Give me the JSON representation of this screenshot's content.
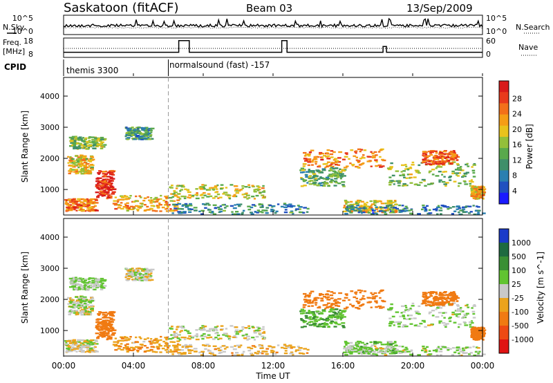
{
  "header": {
    "station": "Saskatoon (fitACF)",
    "beam": "Beam 03",
    "date": "13/Sep/2009"
  },
  "side_labels": {
    "nsky": "N.Sky",
    "nsearch": "N.Search",
    "freq_top": "Freq.",
    "freq_unit": "[MHz]",
    "nave": "Nave",
    "cpid": "CPID"
  },
  "noise_axis": {
    "left": [
      "10^5",
      "10^0"
    ],
    "right": [
      "10^5",
      "10^0"
    ]
  },
  "freq_axis": {
    "left": [
      "18",
      "8"
    ],
    "right": [
      "60",
      "0"
    ]
  },
  "cpid_labels": [
    "themis 3300",
    "normalsound (fast) -157"
  ],
  "time_axis": {
    "ticks": [
      "00:00",
      "04:00",
      "08:00",
      "12:00",
      "16:00",
      "20:00",
      "00:00"
    ],
    "tick_hours": [
      0,
      4,
      8,
      12,
      16,
      20,
      24
    ],
    "label": "Time UT"
  },
  "range_axis": {
    "label": "Slant Range [km]",
    "ticks": [
      "1000",
      "2000",
      "3000",
      "4000"
    ],
    "tick_values": [
      1000,
      2000,
      3000,
      4000
    ],
    "ylim": [
      180,
      4600
    ]
  },
  "power_scale": {
    "label": "Power [dB]",
    "ticks": [
      "4",
      "8",
      "12",
      "16",
      "20",
      "24",
      "28"
    ],
    "colors": [
      "#1a1aff",
      "#2050c0",
      "#2a7fb0",
      "#3f8f6a",
      "#59a94c",
      "#93bf3a",
      "#e8c21c",
      "#f59d16",
      "#f3701a",
      "#e83a1c",
      "#d81a1a"
    ]
  },
  "velocity_scale": {
    "label": "Velocity [m s^-1]",
    "ticks": [
      "1000",
      "500",
      "100",
      "25",
      "-25",
      "-100",
      "-500",
      "-1000"
    ],
    "colors": [
      "#1a3ac9",
      "#1e6a40",
      "#3a8f34",
      "#61c431",
      "#c9c9c9",
      "#eba31c",
      "#f07a12",
      "#ee4a14",
      "#e01414"
    ]
  },
  "chart_data": {
    "type": "heatmap",
    "xlabel": "Time UT",
    "ylabel": "Slant Range [km]",
    "xlim_hours": [
      0,
      24
    ],
    "ylim_km": [
      180,
      4600
    ],
    "cpid_change_hour": 6.0,
    "frequency_mhz": {
      "baseline": 11,
      "spikes": [
        {
          "start_h": 6.6,
          "end_h": 7.2,
          "value": 17
        },
        {
          "start_h": 12.5,
          "end_h": 12.8,
          "value": 17
        },
        {
          "start_h": 18.3,
          "end_h": 18.5,
          "value": 14
        }
      ]
    },
    "scatter_regions": [
      {
        "t0": 0.3,
        "t1": 2.3,
        "r0": 2300,
        "r1": 2700,
        "power": 14,
        "velocity": 40
      },
      {
        "t0": 0.2,
        "t1": 1.6,
        "r0": 1500,
        "r1": 2100,
        "power": 18,
        "velocity": 10
      },
      {
        "t0": 1.8,
        "t1": 2.8,
        "r0": 700,
        "r1": 1600,
        "power": 26,
        "velocity": -200
      },
      {
        "t0": 0.0,
        "t1": 1.8,
        "r0": 300,
        "r1": 700,
        "power": 22,
        "velocity": 0
      },
      {
        "t0": 2.8,
        "t1": 6.5,
        "r0": 300,
        "r1": 800,
        "power": 20,
        "velocity": -80
      },
      {
        "t0": 3.5,
        "t1": 5.0,
        "r0": 2600,
        "r1": 3000,
        "power": 10,
        "velocity": 0
      },
      {
        "t0": 6.0,
        "t1": 11.5,
        "r0": 700,
        "r1": 1150,
        "power": 17,
        "velocity": 0
      },
      {
        "t0": 6.0,
        "t1": 14.0,
        "r0": 200,
        "r1": 550,
        "power": 9,
        "velocity": -50
      },
      {
        "t0": 13.6,
        "t1": 18.3,
        "r0": 1700,
        "r1": 2300,
        "power": 22,
        "velocity": -250
      },
      {
        "t0": 13.5,
        "t1": 16.0,
        "r0": 1100,
        "r1": 1700,
        "power": 12,
        "velocity": 80
      },
      {
        "t0": 16.0,
        "t1": 19.0,
        "r0": 250,
        "r1": 650,
        "power": 18,
        "velocity": 60
      },
      {
        "t0": 18.5,
        "t1": 23.5,
        "r0": 1100,
        "r1": 1900,
        "power": 14,
        "velocity": 30
      },
      {
        "t0": 20.5,
        "t1": 22.5,
        "r0": 1800,
        "r1": 2250,
        "power": 24,
        "velocity": -200
      },
      {
        "t0": 23.3,
        "t1": 24.0,
        "r0": 700,
        "r1": 1100,
        "power": 20,
        "velocity": -300
      },
      {
        "t0": 16.0,
        "t1": 24.0,
        "r0": 200,
        "r1": 500,
        "power": 8,
        "velocity": 20
      }
    ]
  }
}
